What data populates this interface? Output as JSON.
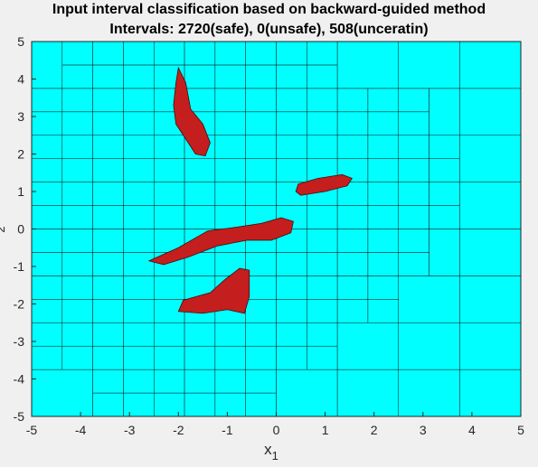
{
  "chart_data": {
    "type": "heatmap",
    "title": "Input interval classification based on backward-guided method",
    "subtitle": "Intervals: 2720(safe), 0(unsafe), 508(unceratin)",
    "xlabel_base": "x",
    "xlabel_sub": "1",
    "ylabel_visible": "2",
    "xlim": [
      -5,
      5
    ],
    "ylim": [
      -5,
      5
    ],
    "xticks": [
      -5,
      -4,
      -3,
      -2,
      -1,
      0,
      1,
      2,
      3,
      4,
      5
    ],
    "yticks": [
      -5,
      -4,
      -3,
      -2,
      -1,
      0,
      1,
      2,
      3,
      4,
      5
    ],
    "grid": false,
    "categories": [
      {
        "name": "safe",
        "count": 2720,
        "color": "#00ffff"
      },
      {
        "name": "unsafe",
        "count": 0,
        "color": "#ff0000"
      },
      {
        "name": "uncertain",
        "count": 508,
        "color": "#c41e1e"
      }
    ],
    "uncertain_regions": [
      {
        "name": "region-upper-left",
        "polygon": [
          [
            -2.0,
            4.3
          ],
          [
            -1.85,
            3.9
          ],
          [
            -1.75,
            3.2
          ],
          [
            -1.5,
            2.8
          ],
          [
            -1.35,
            2.3
          ],
          [
            -1.45,
            1.95
          ],
          [
            -1.65,
            2.0
          ],
          [
            -1.85,
            2.4
          ],
          [
            -2.05,
            2.8
          ],
          [
            -2.1,
            3.3
          ],
          [
            -2.05,
            3.9
          ]
        ]
      },
      {
        "name": "region-upper-right",
        "polygon": [
          [
            0.45,
            1.2
          ],
          [
            0.85,
            1.35
          ],
          [
            1.35,
            1.45
          ],
          [
            1.55,
            1.35
          ],
          [
            1.45,
            1.15
          ],
          [
            1.0,
            1.0
          ],
          [
            0.5,
            0.9
          ],
          [
            0.4,
            1.0
          ]
        ]
      },
      {
        "name": "region-center",
        "polygon": [
          [
            -2.6,
            -0.85
          ],
          [
            -2.0,
            -0.5
          ],
          [
            -1.4,
            -0.05
          ],
          [
            -0.8,
            0.05
          ],
          [
            -0.3,
            0.15
          ],
          [
            0.1,
            0.3
          ],
          [
            0.35,
            0.2
          ],
          [
            0.3,
            -0.1
          ],
          [
            -0.1,
            -0.3
          ],
          [
            -0.6,
            -0.3
          ],
          [
            -1.2,
            -0.45
          ],
          [
            -1.8,
            -0.75
          ],
          [
            -2.3,
            -0.95
          ]
        ]
      },
      {
        "name": "region-lower",
        "polygon": [
          [
            -0.55,
            -1.1
          ],
          [
            -0.75,
            -1.05
          ],
          [
            -1.05,
            -1.35
          ],
          [
            -1.35,
            -1.7
          ],
          [
            -1.9,
            -1.9
          ],
          [
            -2.0,
            -2.2
          ],
          [
            -1.5,
            -2.25
          ],
          [
            -1.0,
            -2.15
          ],
          [
            -0.65,
            -2.25
          ],
          [
            -0.55,
            -1.8
          ]
        ]
      }
    ]
  }
}
